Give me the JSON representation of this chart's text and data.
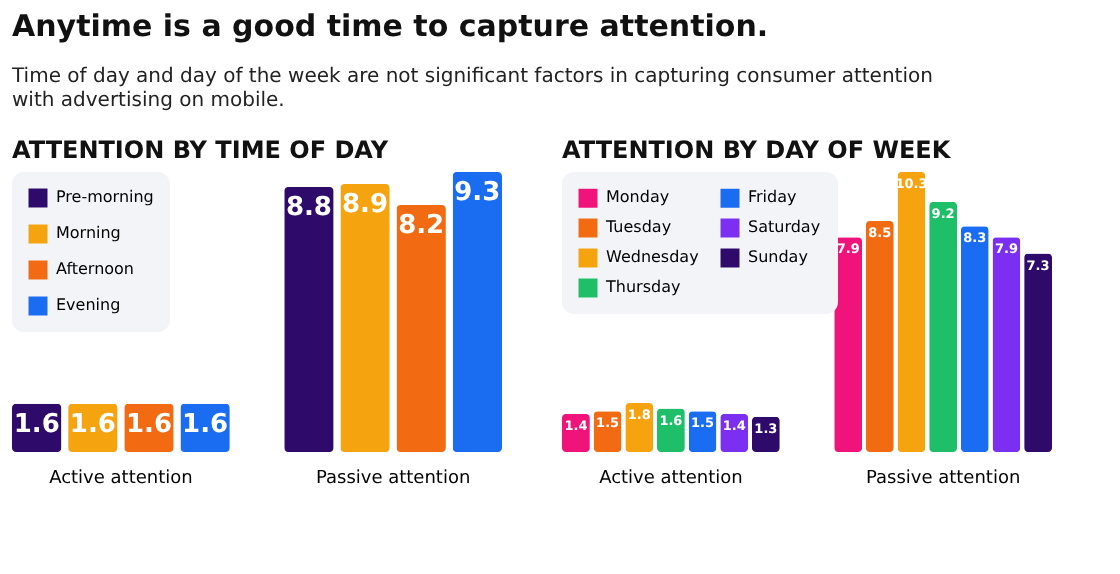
{
  "chart_data": [
    {
      "type": "other",
      "title": "Anytime is a good time to capture attention.",
      "subtitle": "Time of day and day of the week are not significant factors in capturing consumer attention with advertising on mobile."
    },
    {
      "type": "bar",
      "title": "ATTENTION BY TIME OF DAY",
      "categories": [
        "Active attention",
        "Passive attention"
      ],
      "data_labels": true,
      "legend": "top left",
      "series": [
        {
          "name": "Pre-morning",
          "color": "#2e0a6b",
          "values": [
            1.6,
            8.8
          ]
        },
        {
          "name": "Morning",
          "color": "#f5a30f",
          "values": [
            1.6,
            8.9
          ]
        },
        {
          "name": "Afternoon",
          "color": "#f26b12",
          "values": [
            1.6,
            8.2
          ]
        },
        {
          "name": "Evening",
          "color": "#1a6df0",
          "values": [
            1.6,
            9.3
          ]
        }
      ]
    },
    {
      "type": "bar",
      "title": "ATTENTION BY DAY OF WEEK",
      "categories": [
        "Active attention",
        "Passive attention"
      ],
      "data_labels": true,
      "legend": "top left",
      "series": [
        {
          "name": "Monday",
          "color": "#f0147a",
          "values": [
            1.4,
            7.9
          ]
        },
        {
          "name": "Tuesday",
          "color": "#f26b12",
          "values": [
            1.5,
            8.5
          ]
        },
        {
          "name": "Wednesday",
          "color": "#f5a30f",
          "values": [
            1.8,
            10.3
          ]
        },
        {
          "name": "Thursday",
          "color": "#1fbf6a",
          "values": [
            1.6,
            9.2
          ]
        },
        {
          "name": "Friday",
          "color": "#1a6df0",
          "values": [
            1.5,
            8.3
          ]
        },
        {
          "name": "Saturday",
          "color": "#7b2ff0",
          "values": [
            1.4,
            7.9
          ]
        },
        {
          "name": "Sunday",
          "color": "#2e0a6b",
          "values": [
            1.3,
            7.3
          ]
        }
      ]
    }
  ]
}
